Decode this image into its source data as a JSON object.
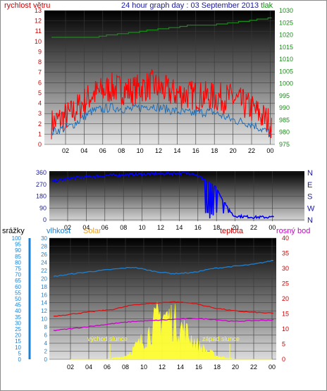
{
  "header": {
    "title": "24 hour graph day : 03 September 2013",
    "left_label": "rychlost větru",
    "right_label": "tlak"
  },
  "colors": {
    "wind": "#ff0000",
    "wind_avg": "#1f6fb8",
    "pressure": "#1a8a1a",
    "direction": "#0000ff",
    "humidity": "#1e7fd0",
    "temperature": "#dd1111",
    "dewpoint": "#cc00cc",
    "solar": "#ffff33",
    "rain": "#1e7fd0",
    "title": "#1a1a9a"
  },
  "wind_panel": {
    "left_ticks": [
      "0",
      "1",
      "2",
      "3",
      "4",
      "5",
      "6",
      "7",
      "8",
      "9",
      "10",
      "11",
      "12",
      "13"
    ],
    "right_ticks": [
      "975",
      "980",
      "985",
      "990",
      "995",
      "1000",
      "1005",
      "1010",
      "1015",
      "1020",
      "1025",
      "1030"
    ],
    "x_ticks": [
      "02",
      "04",
      "06",
      "08",
      "10",
      "12",
      "14",
      "16",
      "18",
      "20",
      "22",
      "00"
    ]
  },
  "direction_panel": {
    "left_ticks": [
      "0",
      "90",
      "180",
      "270",
      "360"
    ],
    "right_labels": [
      "N",
      "W",
      "S",
      "E",
      "N"
    ],
    "x_ticks": [
      "02",
      "04",
      "06",
      "08",
      "10",
      "12",
      "14",
      "16",
      "18",
      "20",
      "22",
      "00"
    ]
  },
  "climate_panel": {
    "labels": {
      "rain": "srážky",
      "humidity": "vlhkost",
      "solar": "Solar",
      "temperature": "teplota",
      "dewpoint": "rosný bod"
    },
    "rain_ticks": [
      "0",
      "5",
      "10",
      "15",
      "20",
      "25",
      "30",
      "35",
      "40",
      "45",
      "50",
      "55",
      "60",
      "65",
      "70",
      "75",
      "80",
      "85",
      "90",
      "95",
      "100"
    ],
    "humidity_ticks": [
      "0",
      "2",
      "4",
      "6",
      "8",
      "10",
      "12",
      "14",
      "16",
      "18",
      "20",
      "22",
      "24",
      "26",
      "28",
      "30"
    ],
    "temp_ticks": [
      "0",
      "5",
      "10",
      "15",
      "20",
      "25",
      "30",
      "35",
      "40"
    ],
    "x_ticks": [
      "02",
      "04",
      "06",
      "08",
      "10",
      "12",
      "14",
      "16",
      "18",
      "20",
      "22",
      "00"
    ],
    "annotations": {
      "sunrise": "východ slunce",
      "sunset": "západ slunce"
    }
  },
  "chart_data": [
    {
      "type": "line",
      "title": "24 hour graph day : 03 September 2013",
      "x": [
        "02",
        "04",
        "06",
        "08",
        "10",
        "12",
        "14",
        "16",
        "18",
        "20",
        "22",
        "00"
      ],
      "ylim_left": [
        0,
        13
      ],
      "ylim_right": [
        975,
        1030
      ],
      "series": [
        {
          "name": "rychlost větru",
          "axis": "left",
          "values": [
            2.0,
            3.0,
            4.8,
            5.5,
            5.2,
            5.8,
            5.0,
            4.8,
            4.6,
            4.5,
            3.5,
            2.0
          ]
        },
        {
          "axis": "left",
          "values": [
            1.2,
            1.8,
            3.2,
            3.6,
            3.4,
            3.8,
            3.3,
            3.0,
            3.2,
            2.4,
            2.0,
            1.0
          ]
        },
        {
          "name": "tlak",
          "axis": "right",
          "values": [
            1019,
            1019,
            1019,
            1020,
            1021,
            1022,
            1023,
            1024,
            1024,
            1025,
            1026,
            1027
          ]
        }
      ]
    },
    {
      "type": "scatter",
      "x": [
        "02",
        "04",
        "06",
        "08",
        "10",
        "12",
        "14",
        "16",
        "18",
        "20",
        "22",
        "00"
      ],
      "ylim": [
        0,
        360
      ],
      "series": [
        {
          "values": [
            290,
            320,
            330,
            340,
            345,
            350,
            355,
            355,
            270,
            30,
            20,
            20
          ]
        }
      ]
    },
    {
      "type": "line",
      "x": [
        "02",
        "04",
        "06",
        "08",
        "10",
        "12",
        "14",
        "16",
        "18",
        "20",
        "22",
        "00"
      ],
      "series": [
        {
          "name": "vlhkost",
          "axis": "humidity",
          "ylim": [
            0,
            30
          ],
          "values": [
            20.5,
            21.2,
            21.8,
            22.3,
            22.8,
            21.8,
            21.2,
            21.5,
            22.5,
            23.0,
            23.5,
            24.5
          ]
        },
        {
          "name": "teplota",
          "axis": "temperature",
          "ylim": [
            0,
            40
          ],
          "values": [
            14.2,
            15.0,
            15.8,
            16.5,
            18.0,
            18.5,
            19.0,
            18.5,
            17.0,
            16.0,
            15.5,
            15.2
          ]
        },
        {
          "name": "rosný bod",
          "axis": "temperature",
          "ylim": [
            0,
            40
          ],
          "values": [
            9.5,
            10.2,
            11.0,
            11.8,
            12.5,
            12.8,
            13.2,
            13.5,
            13.2,
            12.5,
            12.8,
            13.0
          ]
        },
        {
          "name": "Solar",
          "axis": "humidity",
          "ylim": [
            0,
            30
          ],
          "values": [
            0,
            0,
            0,
            1,
            6,
            14,
            10,
            4,
            1,
            0,
            0,
            0
          ]
        },
        {
          "name": "srážky",
          "axis": "rain",
          "ylim": [
            0,
            100
          ],
          "values": [
            0,
            0,
            0,
            0,
            0,
            0,
            0,
            0,
            0,
            0,
            0,
            0
          ]
        }
      ]
    }
  ]
}
